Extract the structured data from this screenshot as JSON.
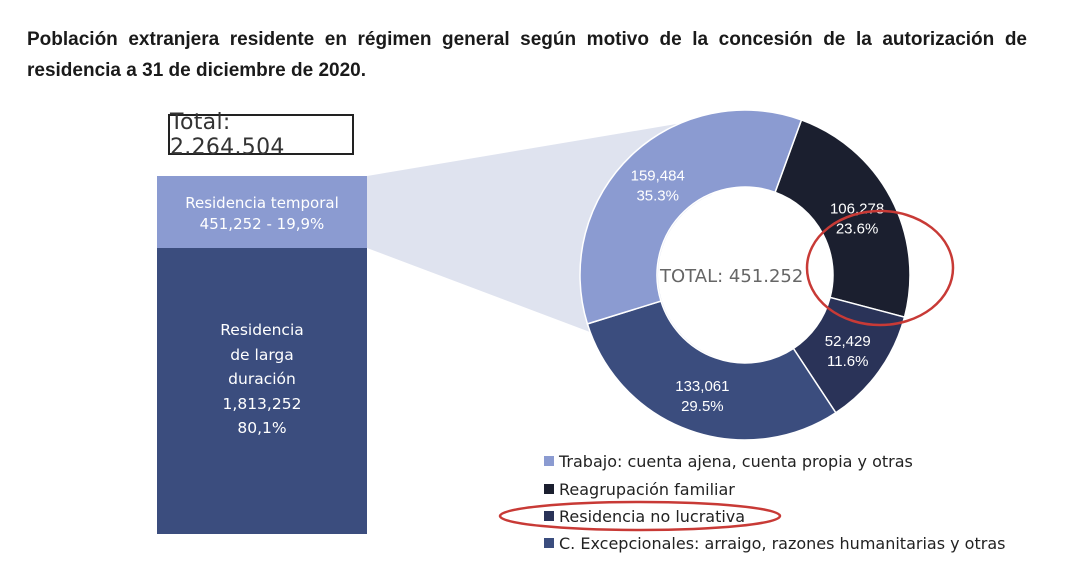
{
  "title": "Población extranjera residente en régimen general según motivo de la concesión de la autorización de residencia a 31 de diciembre de 2020.",
  "total_label": "Total: 2.264.504",
  "bar": {
    "temporal": {
      "label": "Residencia temporal",
      "value_text": "451,252 - 19,9%"
    },
    "larga": {
      "lines": [
        "Residencia",
        "de larga",
        "duración",
        "1,813,252",
        "80,1%"
      ]
    }
  },
  "donut": {
    "center_label": "TOTAL: 451.252"
  },
  "chart_data": [
    {
      "type": "bar",
      "stacked": true,
      "total_label": "Total: 2.264.504",
      "series": [
        {
          "name": "Residencia temporal",
          "value": 451252,
          "percent": 19.9,
          "color": "#8b9bd1"
        },
        {
          "name": "Residencia de larga duración",
          "value": 1813252,
          "percent": 80.1,
          "color": "#3b4d7e"
        }
      ]
    },
    {
      "type": "pie",
      "donut": true,
      "center_label": "TOTAL: 451.252",
      "slices": [
        {
          "label": "Reagrupación familiar",
          "value": 106278,
          "value_text": "106,278",
          "percent_text": "23.6%",
          "color": "#1b1f2f"
        },
        {
          "label": "Residencia no lucrativa",
          "value": 52429,
          "value_text": "52,429",
          "percent_text": "11.6%",
          "color": "#2a3358"
        },
        {
          "label": "C. Excepcionales: arraigo, razones humanitarias y otras",
          "value": 133061,
          "value_text": "133,061",
          "percent_text": "29.5%",
          "color": "#3b4d7e"
        },
        {
          "label": "Trabajo: cuenta ajena, cuenta propia y otras",
          "value": 159484,
          "value_text": "159,484",
          "percent_text": "35.3%",
          "color": "#8b9bd1"
        }
      ],
      "legend": [
        {
          "label": "Trabajo: cuenta ajena, cuenta propia y otras",
          "color": "#8b9bd1"
        },
        {
          "label": "Reagrupación familiar",
          "color": "#1b1f2f"
        },
        {
          "label": "Residencia no lucrativa",
          "color": "#2a3358"
        },
        {
          "label": "C. Excepcionales: arraigo, razones humanitarias y otras",
          "color": "#3b4d7e"
        }
      ],
      "highlighted": [
        "Residencia no lucrativa"
      ],
      "highlight_color": "#c83a36"
    }
  ]
}
